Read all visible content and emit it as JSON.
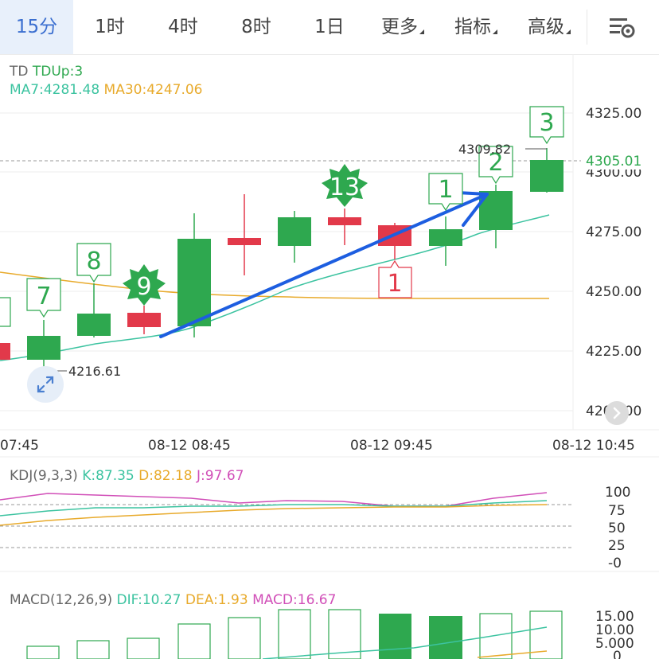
{
  "tabs": [
    {
      "label": "15分",
      "active": true
    },
    {
      "label": "1时",
      "active": false
    },
    {
      "label": "4时",
      "active": false
    },
    {
      "label": "8时",
      "active": false
    },
    {
      "label": "1日",
      "active": false
    },
    {
      "label": "更多",
      "active": false,
      "dropdown": true
    },
    {
      "label": "指标",
      "active": false,
      "dropdown": true
    },
    {
      "label": "高级",
      "active": false,
      "dropdown": true
    }
  ],
  "settings_icon": "chart-settings-icon",
  "main": {
    "td_label": "TD",
    "td_up": "TDUp:3",
    "ma7": "MA7:4281.48",
    "ma30": "MA30:4247.06",
    "price_labels": [
      "4325.00",
      "4300.00",
      "4275.00",
      "4250.00",
      "4225.00",
      "4200.00"
    ],
    "current_price": "4305.01",
    "high_label": "4309.82",
    "low_label": "4216.61",
    "time_labels": [
      "07:45",
      "08-12 08:45",
      "08-12 09:45",
      "08-12 10:45"
    ],
    "td_counts": [
      {
        "text": "7",
        "style": "box"
      },
      {
        "text": "8",
        "style": "box"
      },
      {
        "text": "9",
        "style": "star"
      },
      {
        "text": "13",
        "style": "star"
      },
      {
        "text": "1",
        "style": "box-red"
      },
      {
        "text": "1",
        "style": "box"
      },
      {
        "text": "2",
        "style": "box"
      },
      {
        "text": "3",
        "style": "box"
      }
    ]
  },
  "kdj": {
    "title": "KDJ(9,3,3)",
    "k": "K:87.35",
    "d": "D:82.18",
    "j": "J:97.67",
    "axis": [
      "100",
      "75",
      "50",
      "25",
      "-0"
    ]
  },
  "macd": {
    "title": "MACD(12,26,9)",
    "dif": "DIF:10.27",
    "dea": "DEA:1.93",
    "macd": "MACD:16.67",
    "axis": [
      "15.00",
      "10.00",
      "5.000",
      "0"
    ]
  },
  "colors": {
    "up": "#2ea84f",
    "down": "#e2394a",
    "ma7": "#3cc3a0",
    "ma30": "#e8aa2b",
    "j": "#d14fb8",
    "active_tab_bg": "#e8f0fb",
    "active_tab_text": "#3b6fd0",
    "arrow": "#1d5ee0"
  },
  "icons": [
    "expand-arrows-icon",
    "collapse-chevron-icon"
  ]
}
